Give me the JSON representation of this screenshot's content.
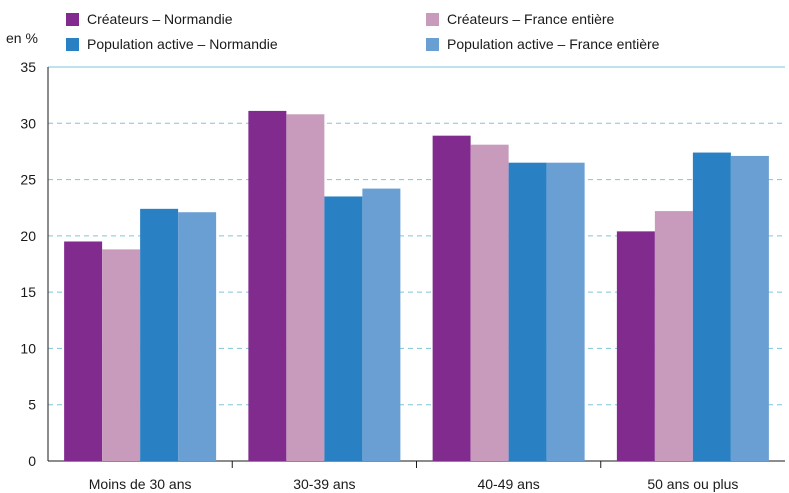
{
  "chart_data": {
    "type": "bar",
    "unit_label": "en %",
    "categories": [
      "Moins de 30 ans",
      "30-39 ans",
      "40-49 ans",
      "50 ans ou plus"
    ],
    "series": [
      {
        "name": "Créateurs – Normandie",
        "color": "#822b8f",
        "values": [
          19.5,
          31.1,
          28.9,
          20.4
        ]
      },
      {
        "name": "Créateurs – France entière",
        "color": "#c89bbd",
        "values": [
          18.8,
          30.8,
          28.1,
          22.2
        ]
      },
      {
        "name": "Population active – Normandie",
        "color": "#2980c3",
        "values": [
          22.4,
          23.5,
          26.5,
          27.4
        ]
      },
      {
        "name": "Population active – France entière",
        "color": "#6a9fd3",
        "values": [
          22.1,
          24.2,
          26.5,
          27.1
        ]
      }
    ],
    "ylim": [
      0,
      35
    ],
    "yticks": [
      0,
      5,
      10,
      15,
      20,
      25,
      30,
      35
    ],
    "grid": true,
    "gridline_color": "#7fc6d9",
    "legend_position": "top"
  }
}
